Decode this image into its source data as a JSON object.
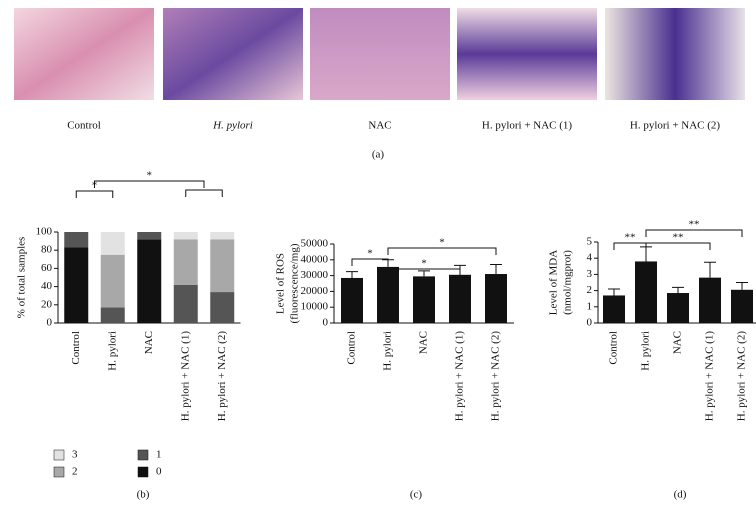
{
  "images": {
    "captions": [
      "Control",
      "H. pylori",
      "NAC",
      "H. pylori + NAC (1)",
      "H. pylori + NAC (2)"
    ],
    "panel_label": "(a)"
  },
  "chart_data": [
    {
      "type": "stacked-bar",
      "panel_label": "(b)",
      "ylabel": [
        "% of total samples"
      ],
      "categories": [
        "Control",
        "H. pylori",
        "NAC",
        "H. pylori + NAC (1)",
        "H. pylori + NAC (2)"
      ],
      "series": [
        {
          "name": "0",
          "color": "#111111",
          "values": [
            83,
            0,
            92,
            0,
            0
          ]
        },
        {
          "name": "1",
          "color": "#555555",
          "values": [
            17,
            17,
            8,
            42,
            34
          ]
        },
        {
          "name": "2",
          "color": "#a8a8a8",
          "values": [
            0,
            58,
            0,
            50,
            58
          ]
        },
        {
          "name": "3",
          "color": "#e2e2e2",
          "values": [
            0,
            25,
            0,
            8,
            8
          ]
        }
      ],
      "ylim": [
        0,
        100
      ],
      "yticks": [
        0,
        20,
        40,
        60,
        80,
        100
      ],
      "annotations": [
        "*",
        "*"
      ]
    },
    {
      "type": "bar",
      "panel_label": "(c)",
      "ylabel": [
        "Level of ROS",
        "(fluorescence/mg)"
      ],
      "categories": [
        "Control",
        "H. pylori",
        "NAC",
        "H. pylori + NAC (1)",
        "H. pylori + NAC (2)"
      ],
      "values": [
        28500,
        35500,
        29500,
        30500,
        31000
      ],
      "errors": [
        4000,
        4500,
        3500,
        6000,
        6000
      ],
      "color": "#111111",
      "ylim": [
        0,
        50000
      ],
      "yticks": [
        0,
        10000,
        20000,
        30000,
        40000,
        50000
      ],
      "annotations": [
        "*",
        "*",
        "*"
      ]
    },
    {
      "type": "bar",
      "panel_label": "(d)",
      "ylabel": [
        "Level of MDA",
        "(nmol/mgprot)"
      ],
      "categories": [
        "Control",
        "H. pylori",
        "NAC",
        "H. pylori + NAC (1)",
        "H. pylori + NAC (2)"
      ],
      "values": [
        1.7,
        3.8,
        1.85,
        2.8,
        2.05
      ],
      "errors": [
        0.4,
        0.9,
        0.35,
        0.95,
        0.45
      ],
      "color": "#111111",
      "ylim": [
        0,
        5
      ],
      "yticks": [
        0,
        1,
        2,
        3,
        4,
        5
      ],
      "annotations": [
        "**",
        "**",
        "**"
      ]
    }
  ]
}
